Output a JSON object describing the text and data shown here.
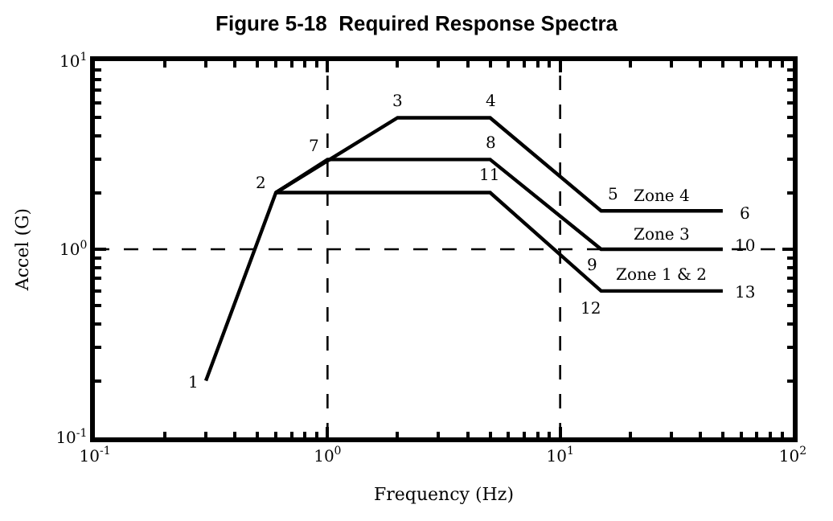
{
  "chart_data": {
    "type": "line",
    "title": "Figure 5-18  Required Response Spectra",
    "xlabel": "Frequency (Hz)",
    "ylabel": "Accel (G)",
    "log": "xy",
    "grid": false,
    "legend": false,
    "marker": "none",
    "line_style": "solid",
    "xlim": [
      0.1,
      100
    ],
    "ylim": [
      0.1,
      10
    ],
    "xticks": [
      {
        "value": 0.1,
        "label": "10$^{-1}$"
      },
      {
        "value": 1,
        "label": "10$^{0}$"
      },
      {
        "value": 10,
        "label": "10$^{1}$"
      },
      {
        "value": 100,
        "label": "10$^{2}$"
      }
    ],
    "yticks": [
      {
        "value": 0.1,
        "label": "10$^{-1}$"
      },
      {
        "value": 1,
        "label": "10$^{0}$"
      },
      {
        "value": 10,
        "label": "10$^{1}$"
      }
    ],
    "series": [
      {
        "name": "Zone 4",
        "color": "#000000",
        "x": [
          0.3,
          0.6,
          2,
          5,
          15,
          50
        ],
        "values": [
          0.2,
          2,
          5,
          5,
          1.6,
          1.6
        ]
      },
      {
        "name": "Zone 3",
        "color": "#000000",
        "x": [
          0.6,
          1,
          5,
          15,
          50
        ],
        "values": [
          2,
          3,
          3,
          1,
          1
        ]
      },
      {
        "name": "Zone 1 & 2",
        "color": "#000000",
        "x": [
          0.6,
          5,
          15,
          50
        ],
        "values": [
          2,
          2,
          0.6,
          0.6
        ]
      }
    ],
    "ref_lines": [
      {
        "axis": "x",
        "value": 1,
        "line_style": "dashed",
        "color": "#000000"
      },
      {
        "axis": "x",
        "value": 10,
        "line_style": "dashed",
        "color": "#000000"
      },
      {
        "axis": "y",
        "value": 1,
        "line_style": "dashed",
        "color": "#000000"
      }
    ],
    "annotations": [
      {
        "text": "1",
        "x": 0.3,
        "y": 0.2
      },
      {
        "text": "2",
        "x": 0.6,
        "y": 2
      },
      {
        "text": "3",
        "x": 2,
        "y": 5
      },
      {
        "text": "4",
        "x": 5,
        "y": 5
      },
      {
        "text": "5",
        "x": 15,
        "y": 1.6
      },
      {
        "text": "6",
        "x": 50,
        "y": 1.6
      },
      {
        "text": "7",
        "x": 1,
        "y": 3
      },
      {
        "text": "8",
        "x": 5,
        "y": 3
      },
      {
        "text": "9",
        "x": 15,
        "y": 1
      },
      {
        "text": "10",
        "x": 50,
        "y": 1
      },
      {
        "text": "11",
        "x": 5,
        "y": 2
      },
      {
        "text": "12",
        "x": 15,
        "y": 0.6
      },
      {
        "text": "13",
        "x": 50,
        "y": 0.6
      }
    ]
  }
}
